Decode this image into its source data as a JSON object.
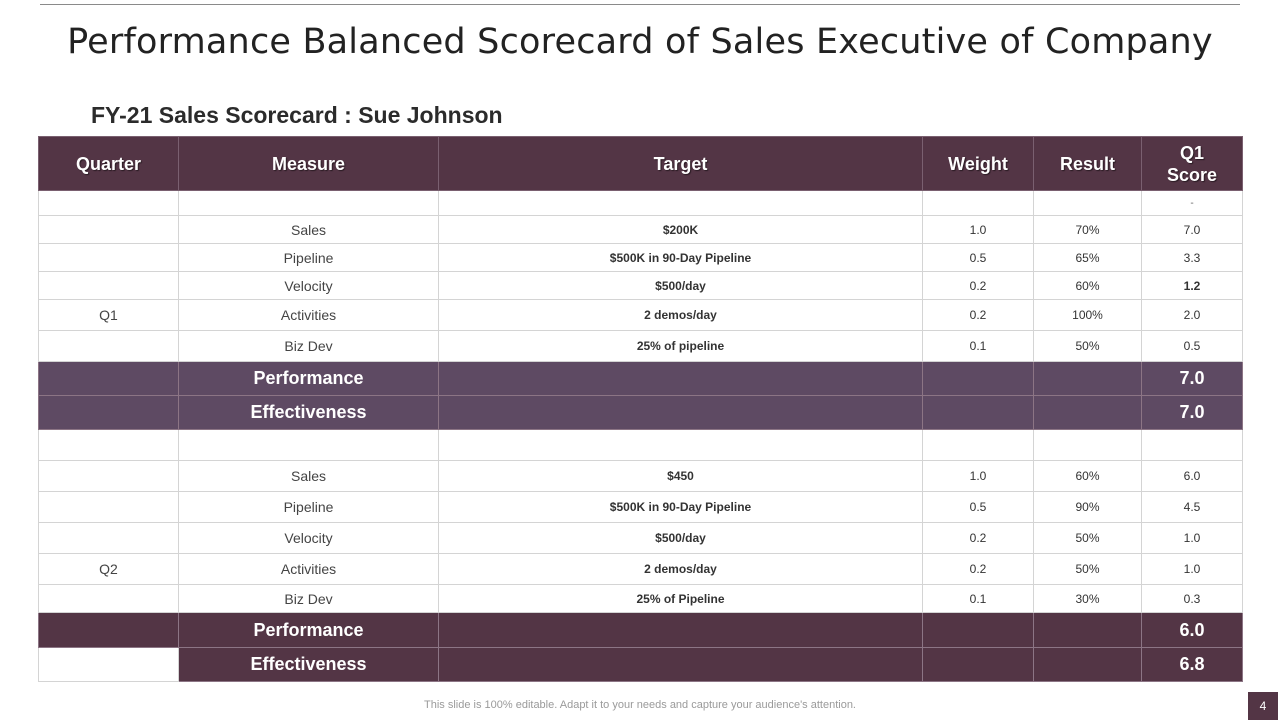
{
  "title": "Performance Balanced Scorecard of Sales Executive of Company",
  "subtitle": "FY-21 Sales Scorecard : Sue Johnson",
  "headers": {
    "quarter": "Quarter",
    "measure": "Measure",
    "target": "Target",
    "weight": "Weight",
    "result": "Result",
    "score_line1": "Q1",
    "score_line2": "Score"
  },
  "q1": {
    "label": "Q1",
    "dash": "-",
    "rows": [
      {
        "measure": "Sales",
        "target": "$200K",
        "weight": "1.0",
        "result": "70%",
        "score": "7.0"
      },
      {
        "measure": "Pipeline",
        "target": "$500K in 90-Day Pipeline",
        "weight": "0.5",
        "result": "65%",
        "score": "3.3"
      },
      {
        "measure": "Velocity",
        "target": "$500/day",
        "weight": "0.2",
        "result": "60%",
        "score": "1.2"
      },
      {
        "measure": "Activities",
        "target": "2 demos/day",
        "weight": "0.2",
        "result": "100%",
        "score": "2.0"
      },
      {
        "measure": "Biz Dev",
        "target": "25% of pipeline",
        "weight": "0.1",
        "result": "50%",
        "score": "0.5"
      }
    ],
    "performance": {
      "label": "Performance",
      "score": "7.0"
    },
    "effectiveness": {
      "label": "Effectiveness",
      "score": "7.0"
    }
  },
  "q2": {
    "label": "Q2",
    "rows": [
      {
        "measure": "Sales",
        "target": "$450",
        "weight": "1.0",
        "result": "60%",
        "score": "6.0"
      },
      {
        "measure": "Pipeline",
        "target": "$500K in 90-Day Pipeline",
        "weight": "0.5",
        "result": "90%",
        "score": "4.5"
      },
      {
        "measure": "Velocity",
        "target": "$500/day",
        "weight": "0.2",
        "result": "50%",
        "score": "1.0"
      },
      {
        "measure": "Activities",
        "target": "2 demos/day",
        "weight": "0.2",
        "result": "50%",
        "score": "1.0"
      },
      {
        "measure": "Biz Dev",
        "target": "25% of Pipeline",
        "weight": "0.1",
        "result": "30%",
        "score": "0.3"
      }
    ],
    "performance": {
      "label": "Performance",
      "score": "6.0"
    },
    "effectiveness": {
      "label": "Effectiveness",
      "score": "6.8"
    }
  },
  "footer": "This slide is 100% editable. Adapt it to your needs and capture your audience's attention.",
  "page_number": "4",
  "colors": {
    "header": "#533545",
    "summary_q1": "#5e4a63",
    "summary_q2": "#533545"
  }
}
